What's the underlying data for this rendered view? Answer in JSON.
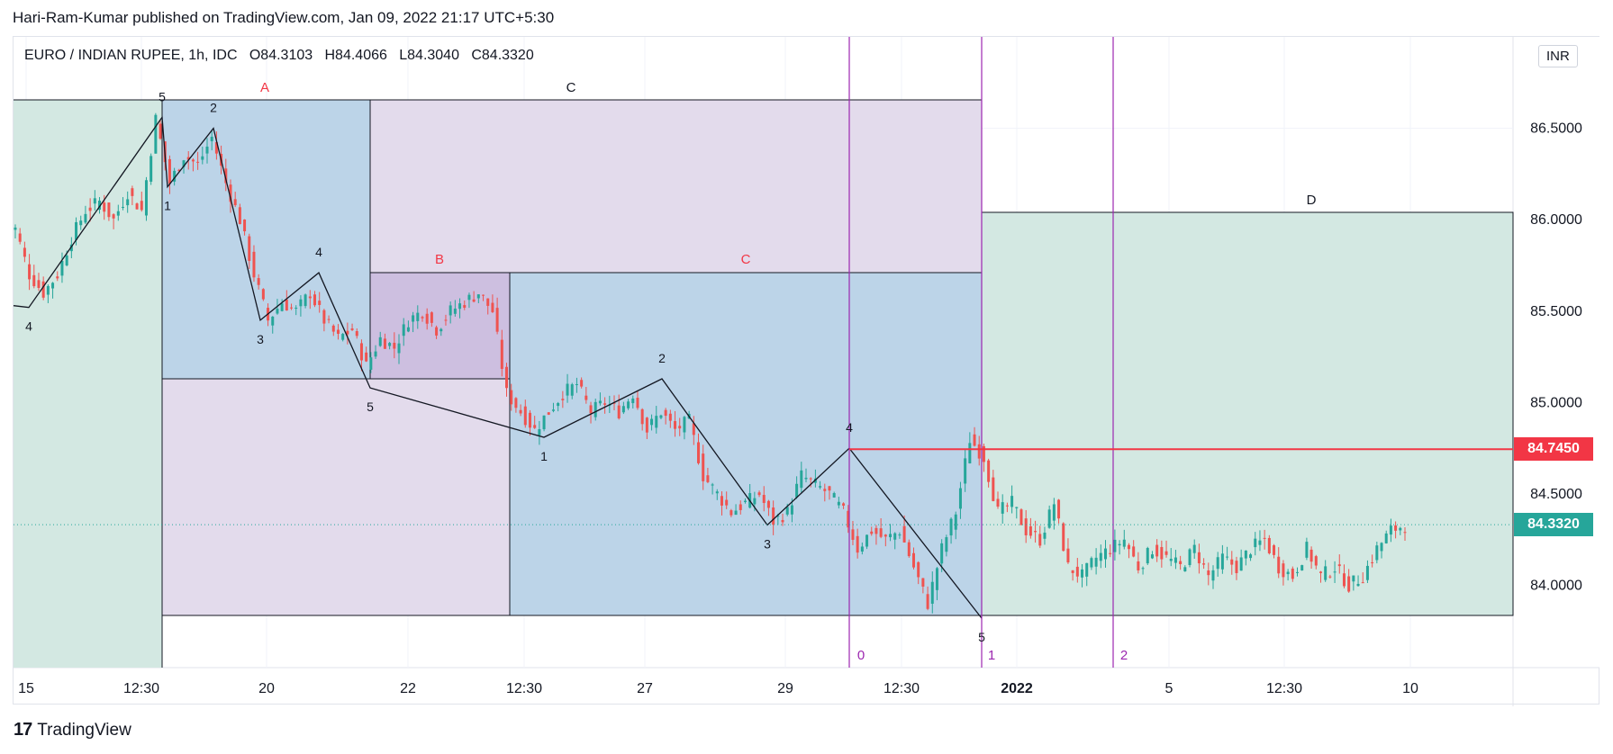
{
  "publisher_line": "Hari-Ram-Kumar published on TradingView.com, Jan 09, 2022 21:17 UTC+5:30",
  "footer_brand": "TradingView",
  "currency_button": "INR",
  "ohlc": {
    "symbol": "EURO / INDIAN RUPEE, 1h, IDC",
    "o_label": "O",
    "o": "84.3103",
    "h_label": "H",
    "h": "84.4066",
    "l_label": "L",
    "l": "84.3040",
    "c_label": "C",
    "c": "84.3320"
  },
  "price_tags": {
    "level": "84.7450",
    "last": "84.3320"
  },
  "colors": {
    "level_line": "#f23645",
    "last_tag": "#26a69a",
    "up_candle": "#26a69a",
    "down_candle": "#ef5350",
    "vline": "#9c27b0",
    "wave_line": "#131722",
    "box_blue": "#bcd4e8",
    "box_purple": "#e3dbec",
    "box_green": "#d3e8e2"
  },
  "chart_data": {
    "type": "candlestick",
    "ylim": [
      83.55,
      87.0
    ],
    "y_ticks": [
      "86.5000",
      "86.0000",
      "85.5000",
      "85.0000",
      "84.5000",
      "84.0000"
    ],
    "x_ticks": [
      "15",
      "12:30",
      "20",
      "22",
      "12:30",
      "27",
      "29",
      "12:30",
      "2022",
      "5",
      "12:30",
      "10"
    ],
    "level_line": 84.745,
    "last_price": 84.332,
    "wave_points": [
      {
        "label": "4",
        "y": 85.52
      },
      {
        "label": "5",
        "y": 86.56
      },
      {
        "label": "1",
        "y": 86.18
      },
      {
        "label": "2",
        "y": 86.5
      },
      {
        "label": "3",
        "y": 85.45
      },
      {
        "label": "4",
        "y": 85.71
      },
      {
        "label": "5",
        "y": 85.08
      },
      {
        "label": "1",
        "y": 84.81
      },
      {
        "label": "2",
        "y": 85.13
      },
      {
        "label": "3",
        "y": 84.33
      },
      {
        "label": "4",
        "y": 84.75
      },
      {
        "label": "5",
        "y": 83.82
      }
    ],
    "box_labels": [
      "A",
      "C",
      "B",
      "C",
      "D"
    ],
    "vline_labels": [
      "0",
      "1",
      "2"
    ],
    "candles_from": 85.95,
    "candle_path": [
      85.95,
      85.7,
      85.6,
      85.7,
      85.9,
      86.05,
      86.1,
      86.0,
      86.15,
      86.05,
      86.55,
      86.2,
      86.35,
      86.3,
      86.45,
      86.2,
      86.0,
      85.7,
      85.45,
      85.55,
      85.5,
      85.6,
      85.45,
      85.35,
      85.4,
      85.2,
      85.35,
      85.3,
      85.45,
      85.5,
      85.4,
      85.5,
      85.55,
      85.6,
      85.5,
      85.05,
      84.95,
      84.85,
      84.95,
      85.05,
      85.1,
      84.95,
      85.0,
      84.95,
      85.05,
      84.85,
      84.95,
      84.85,
      84.9,
      84.6,
      84.5,
      84.4,
      84.45,
      84.5,
      84.35,
      84.4,
      84.6,
      84.55,
      84.5,
      84.4,
      84.2,
      84.3,
      84.25,
      84.3,
      84.1,
      83.9,
      84.2,
      84.4,
      84.8,
      84.7,
      84.4,
      84.45,
      84.3,
      84.25,
      84.45,
      84.1,
      84.05,
      84.15,
      84.2,
      84.25,
      84.1,
      84.2,
      84.15,
      84.1,
      84.2,
      84.05,
      84.15,
      84.1,
      84.2,
      84.25,
      84.1,
      84.05,
      84.2,
      84.05,
      84.1,
      84.0,
      84.05,
      84.2,
      84.3,
      84.33
    ]
  }
}
